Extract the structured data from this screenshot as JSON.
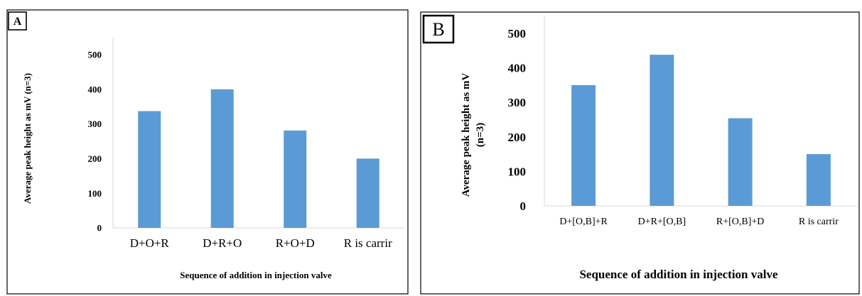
{
  "colors": {
    "bar": "#5b9bd5",
    "frame": "#000000",
    "text": "#000000"
  },
  "chart_data": [
    {
      "type": "bar",
      "panel_label": "A",
      "categories": [
        "D+O+R",
        "D+R+O",
        "R+O+D",
        "R is carrir"
      ],
      "values": [
        337,
        400,
        281,
        200
      ],
      "xlabel": "Sequence of addition in injection valve",
      "ylabel": "Average peak height as mV (n=3)",
      "ylim": [
        0,
        500
      ],
      "yticks": [
        "0",
        "100",
        "200",
        "300",
        "400",
        "500"
      ],
      "grid": false,
      "legend": "none"
    },
    {
      "type": "bar",
      "panel_label": "B",
      "categories": [
        "D+[O,B]+R",
        "D+R+[O,B]",
        "R+[O,B]+D",
        "R is carrir"
      ],
      "values": [
        350,
        438,
        254,
        150
      ],
      "xlabel": "Sequence of addition in injection valve",
      "ylabel_lines": [
        "Average peak height as mV",
        "(n=3)"
      ],
      "ylim": [
        0,
        500
      ],
      "yticks": [
        "0",
        "100",
        "200",
        "300",
        "400",
        "500"
      ],
      "grid": false,
      "legend": "none"
    }
  ]
}
